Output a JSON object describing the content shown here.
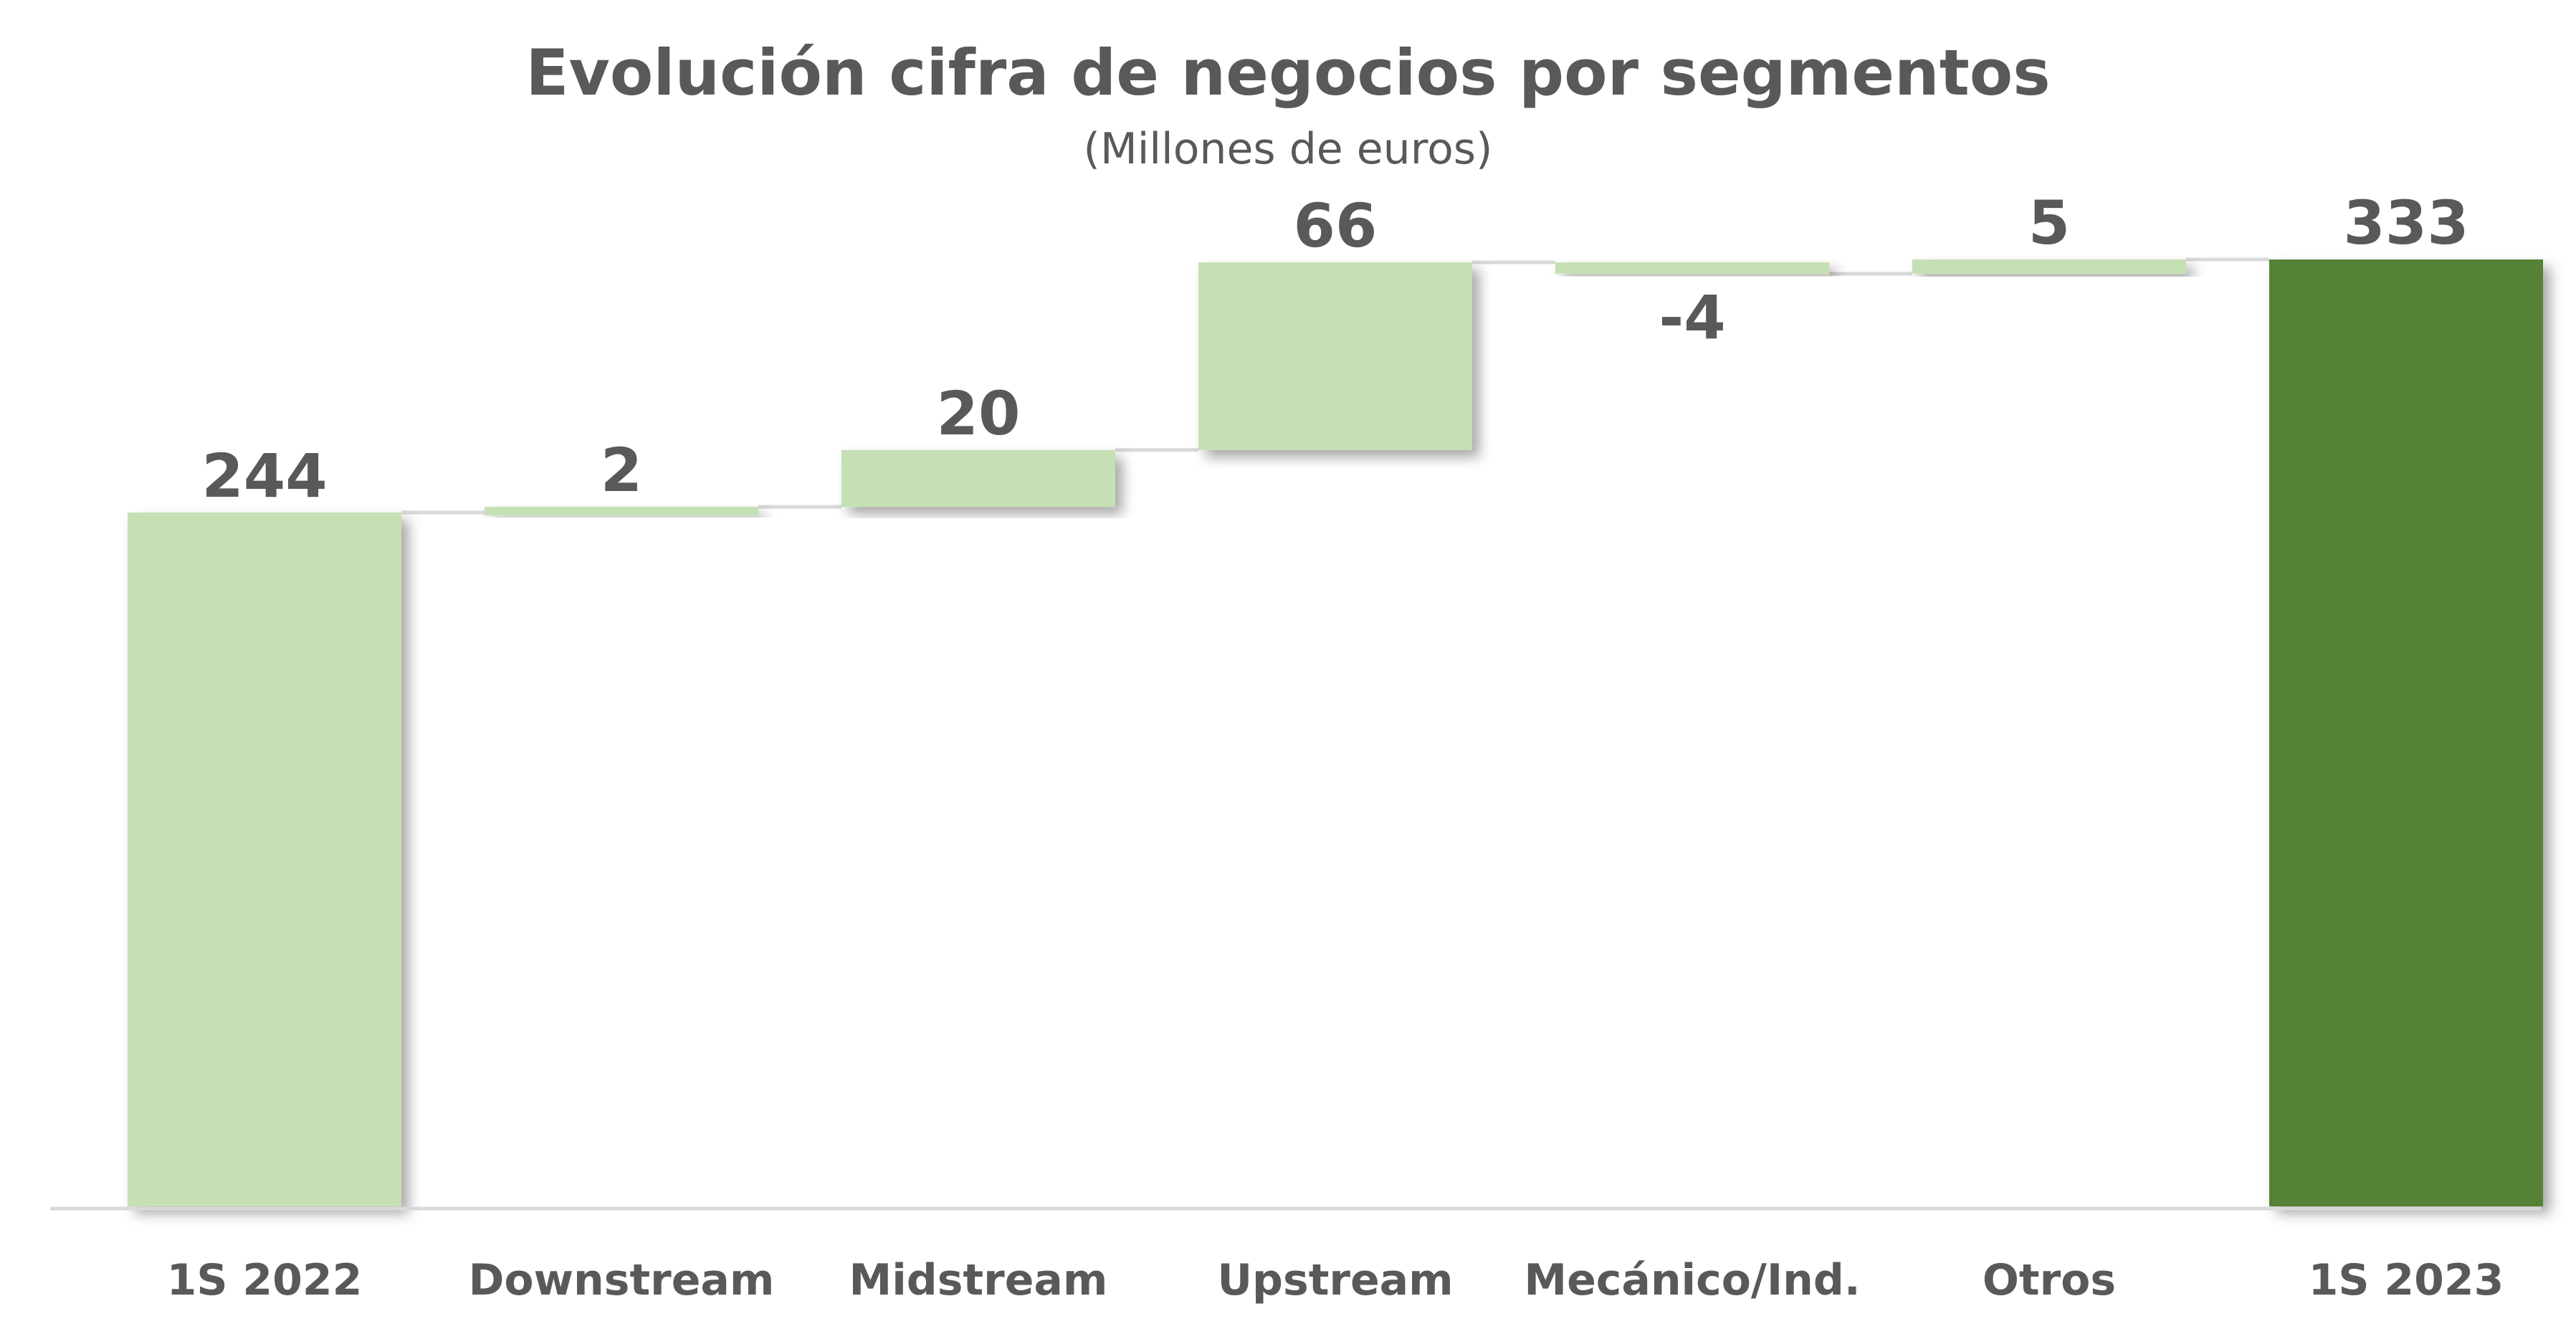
{
  "chart_data": {
    "type": "bar",
    "subtype": "waterfall",
    "title": "Evolución cifra de negocios por segmentos",
    "subtitle": "(Millones de euros)",
    "categories": [
      "1S 2022",
      "Downstream",
      "Midstream",
      "Upstream",
      "Mecánico/Ind.",
      "Otros",
      "1S 2023"
    ],
    "values": [
      244,
      2,
      20,
      66,
      -4,
      5,
      333
    ],
    "bar_kinds": [
      "total",
      "delta",
      "delta",
      "delta",
      "delta",
      "delta",
      "total"
    ],
    "data_labels": [
      "244",
      "2",
      "20",
      "66",
      "-4",
      "5",
      "333"
    ],
    "ylim": [
      0,
      333
    ],
    "grid": false,
    "legend": "none",
    "colors": {
      "light_bar": "#c5e0b4",
      "dark_bar": "#548235",
      "connector": "#d9d9d9",
      "axis": "#d9d9d9",
      "text": "#595959"
    }
  }
}
